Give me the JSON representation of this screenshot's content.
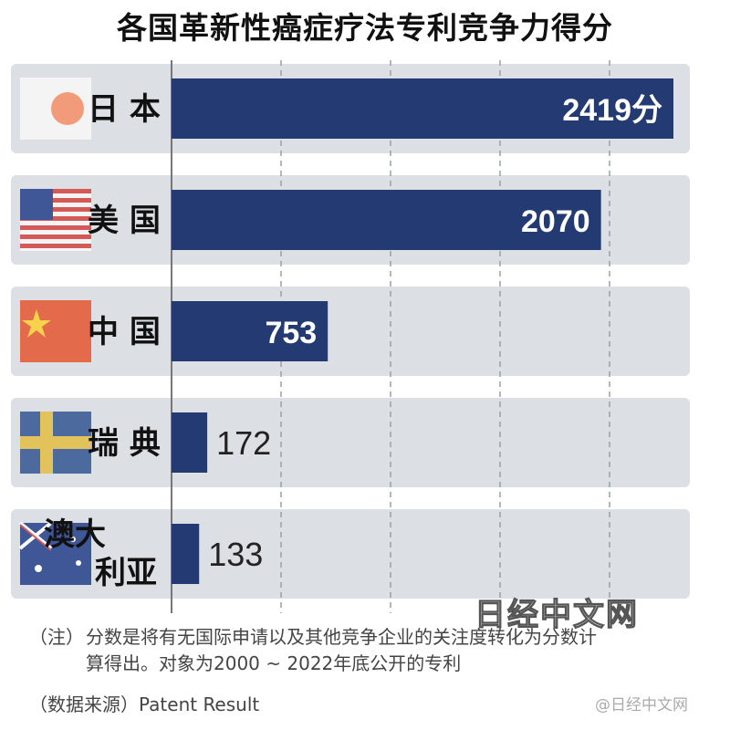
{
  "title": "各国革新性癌症疗法专利竞争力得分",
  "chart_data": {
    "type": "bar",
    "orientation": "horizontal",
    "title": "各国革新性癌症疗法专利竞争力得分",
    "categories": [
      "日本",
      "美国",
      "中国",
      "瑞典",
      "澳大利亚"
    ],
    "category_lines": [
      [
        "日 本"
      ],
      [
        "美 国"
      ],
      [
        "中 国"
      ],
      [
        "瑞 典"
      ],
      [
        "澳大",
        "利亚"
      ]
    ],
    "values": [
      2419,
      2070,
      753,
      172,
      133
    ],
    "value_labels": [
      "2419分",
      "2070",
      "753",
      "172",
      "133"
    ],
    "flag_icons": [
      "japan-flag-icon",
      "usa-flag-icon",
      "china-flag-icon",
      "sweden-flag-icon",
      "australia-flag-icon"
    ],
    "xlim": [
      0,
      2500
    ],
    "grid": true,
    "colors": {
      "bar": "#233a72",
      "row_background": "#dcdfe4",
      "grid": "#9aa0a8"
    }
  },
  "note": {
    "label": "（注）",
    "line1": "分数是将有无国际申请以及其他竞争企业的关注度转化为分数计",
    "line2": "算得出。对象为2000 ~ 2022年底公开的专利"
  },
  "source": "（数据来源）Patent Result",
  "watermark": "日经中文网",
  "corner_mark": "@日经中文网"
}
